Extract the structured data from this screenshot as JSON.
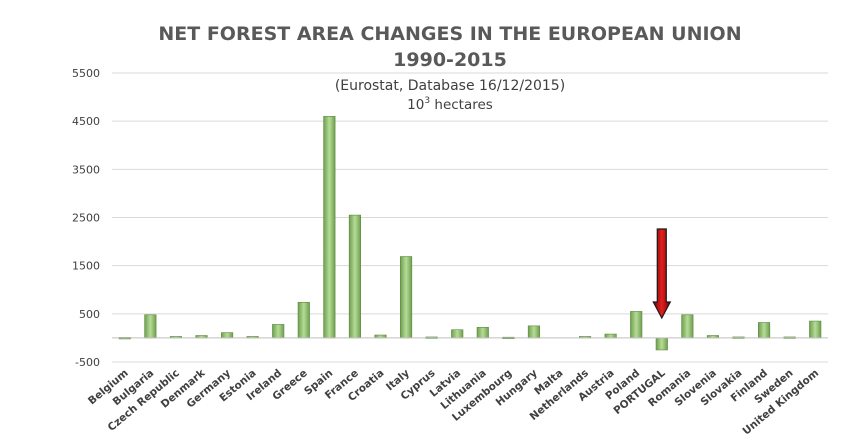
{
  "chart_data": {
    "type": "bar",
    "title_line1": "NET FOREST AREA CHANGES IN THE EUROPEAN UNION",
    "title_line2": "1990-2015",
    "subtitle": "(Eurostat, Database 16/12/2015)",
    "unit_base": "10",
    "unit_exp": "3",
    "unit_suffix": " hectares",
    "ylim": [
      -500,
      5500
    ],
    "yticks": [
      -500,
      500,
      1500,
      2500,
      3500,
      4500,
      5500
    ],
    "grid": true,
    "bar_color": "#9bc878",
    "highlight_category": "PORTUGAL",
    "arrow_color": "#c00000",
    "categories": [
      "Belgium",
      "Bulgaria",
      "Czech Republic",
      "Denmark",
      "Germany",
      "Estonia",
      "Ireland",
      "Greece",
      "Spain",
      "France",
      "Croatia",
      "Italy",
      "Cyprus",
      "Latvia",
      "Lithuania",
      "Luxembourg",
      "Hungary",
      "Malta",
      "Netherlands",
      "Austria",
      "Poland",
      "PORTUGAL",
      "Romania",
      "Slovenia",
      "Slovakia",
      "Finland",
      "Sweden",
      "United Kingdom"
    ],
    "values": [
      10,
      480,
      30,
      50,
      110,
      30,
      280,
      740,
      4600,
      2550,
      60,
      1690,
      20,
      170,
      220,
      15,
      250,
      0,
      30,
      80,
      550,
      -250,
      480,
      50,
      20,
      320,
      20,
      350
    ]
  }
}
